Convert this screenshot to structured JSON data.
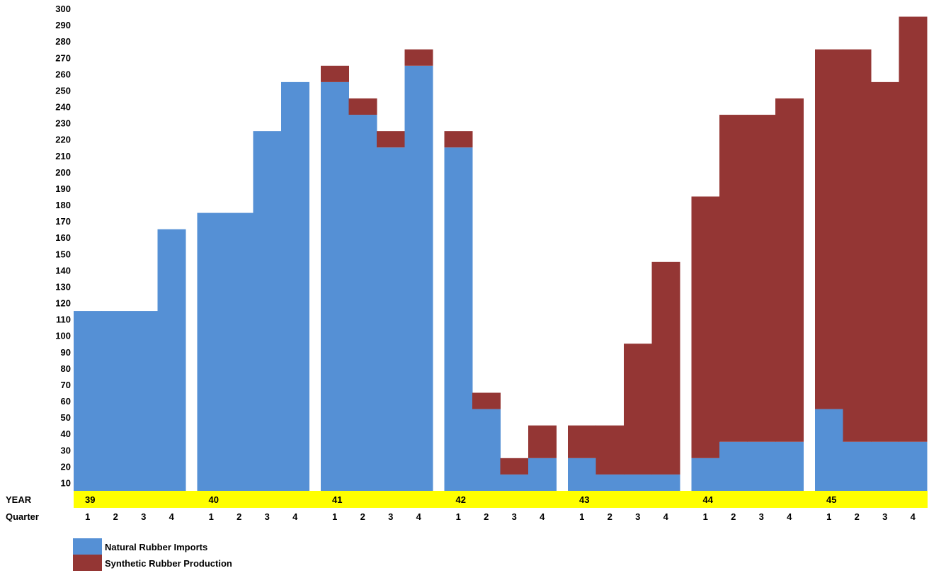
{
  "chart_data": {
    "type": "bar",
    "stacked": true,
    "row_labels": {
      "year": "YEAR",
      "quarter": "Quarter"
    },
    "years": [
      "39",
      "40",
      "41",
      "42",
      "43",
      "44",
      "45"
    ],
    "quarters": [
      "1",
      "2",
      "3",
      "4"
    ],
    "yticks": [
      10,
      20,
      30,
      40,
      50,
      60,
      70,
      80,
      90,
      100,
      110,
      120,
      130,
      140,
      150,
      160,
      170,
      180,
      190,
      200,
      210,
      220,
      230,
      240,
      250,
      260,
      270,
      280,
      290,
      300
    ],
    "ylim": [
      5,
      300
    ],
    "series": [
      {
        "name": "Natural Rubber Imports",
        "color": "#5590D5",
        "values": [
          [
            115,
            115,
            115,
            165
          ],
          [
            175,
            175,
            225,
            255
          ],
          [
            255,
            235,
            215,
            265
          ],
          [
            215,
            55,
            15,
            25
          ],
          [
            25,
            15,
            15,
            15
          ],
          [
            25,
            35,
            35,
            35
          ],
          [
            55,
            35,
            35,
            35
          ]
        ]
      },
      {
        "name": "Synthetic Rubber Production",
        "color": "#943634",
        "values": [
          [
            0,
            0,
            0,
            0
          ],
          [
            0,
            0,
            0,
            0
          ],
          [
            10,
            10,
            10,
            10
          ],
          [
            10,
            10,
            10,
            20
          ],
          [
            20,
            30,
            80,
            130
          ],
          [
            160,
            200,
            200,
            210
          ],
          [
            220,
            240,
            220,
            260
          ]
        ]
      }
    ],
    "highlight_band_color": "#FFFF00"
  }
}
